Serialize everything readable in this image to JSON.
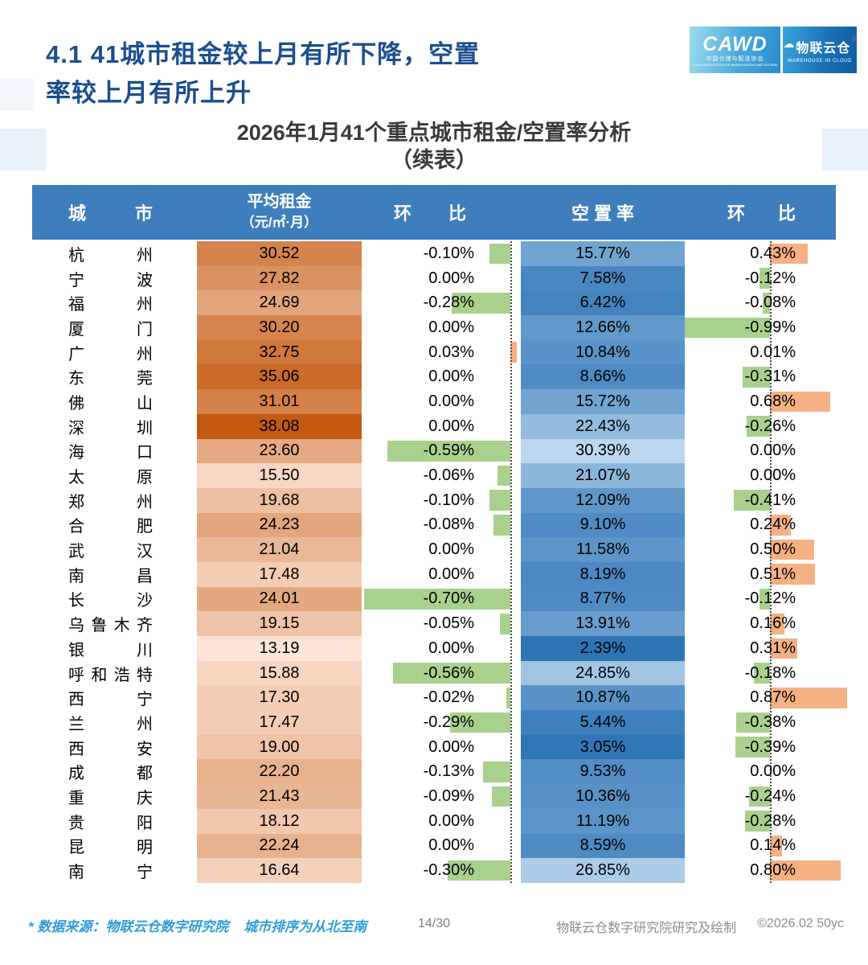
{
  "page": {
    "title_line1": "4.1 41城市租金较上月有所下降，空置",
    "title_line2": "率较上月有所上升",
    "subtitle_line1": "2026年1月41个重点城市租金/空置率分析",
    "subtitle_line2": "（续表）",
    "footer_note": "* 数据来源：物联云仓数字研究院    城市排序为从北至南",
    "page_number": "14/30",
    "footer_credit": "物联云仓数字研究院研究及绘制",
    "footer_copyright": "©2026.02 50yc"
  },
  "logos": {
    "cawd_text": "CAWD",
    "cawd_sub": "中国仓储与配送协会",
    "cawd_sub_en": "CHINA ASSOCIATION OF WAREHOUSING AND DISTRIBUTION",
    "wic_cloud": "☁",
    "wic_text": "物联云仓",
    "wic_reg": "®",
    "wic_sub": "WAREHOUSE IN CLOUD"
  },
  "colors": {
    "title": "#1B4E8F",
    "header_bg": "#3E7EBC",
    "rent_light": "#FCE4D6",
    "rent_dark": "#C45911",
    "vacancy_light": "#BDD7EE",
    "vacancy_dark": "#2E75B6",
    "bar_negative": "#A9D18E",
    "bar_positive": "#F4B183"
  },
  "chart_data": {
    "type": "table",
    "title": "2026年1月41个重点城市租金/空置率分析（续表）",
    "columns": [
      "城市",
      "平均租金（元/㎡·月）",
      "环比",
      "空置率",
      "环比"
    ],
    "header": {
      "city": "城市",
      "rent_line1": "平均租金",
      "rent_line2": "（元/㎡·月）",
      "mom": "环比",
      "vacancy": "空置率"
    },
    "rent_range": [
      13.19,
      38.08
    ],
    "vacancy_range": [
      2.39,
      30.39
    ],
    "rows": [
      {
        "city": "杭州",
        "rent": 30.52,
        "rent_mom": -0.1,
        "vacancy": 15.77,
        "vacancy_mom": 0.43
      },
      {
        "city": "宁波",
        "rent": 27.82,
        "rent_mom": 0.0,
        "vacancy": 7.58,
        "vacancy_mom": -0.12
      },
      {
        "city": "福州",
        "rent": 24.69,
        "rent_mom": -0.28,
        "vacancy": 6.42,
        "vacancy_mom": -0.08
      },
      {
        "city": "厦门",
        "rent": 30.2,
        "rent_mom": 0.0,
        "vacancy": 12.66,
        "vacancy_mom": -0.99
      },
      {
        "city": "广州",
        "rent": 32.75,
        "rent_mom": 0.03,
        "vacancy": 10.84,
        "vacancy_mom": 0.01
      },
      {
        "city": "东莞",
        "rent": 35.06,
        "rent_mom": 0.0,
        "vacancy": 8.66,
        "vacancy_mom": -0.31
      },
      {
        "city": "佛山",
        "rent": 31.01,
        "rent_mom": 0.0,
        "vacancy": 15.72,
        "vacancy_mom": 0.68
      },
      {
        "city": "深圳",
        "rent": 38.08,
        "rent_mom": 0.0,
        "vacancy": 22.43,
        "vacancy_mom": -0.26
      },
      {
        "city": "海口",
        "rent": 23.6,
        "rent_mom": -0.59,
        "vacancy": 30.39,
        "vacancy_mom": 0.0
      },
      {
        "city": "太原",
        "rent": 15.5,
        "rent_mom": -0.06,
        "vacancy": 21.07,
        "vacancy_mom": 0.0
      },
      {
        "city": "郑州",
        "rent": 19.68,
        "rent_mom": -0.1,
        "vacancy": 12.09,
        "vacancy_mom": -0.41
      },
      {
        "city": "合肥",
        "rent": 24.23,
        "rent_mom": -0.08,
        "vacancy": 9.1,
        "vacancy_mom": 0.24
      },
      {
        "city": "武汉",
        "rent": 21.04,
        "rent_mom": 0.0,
        "vacancy": 11.58,
        "vacancy_mom": 0.5
      },
      {
        "city": "南昌",
        "rent": 17.48,
        "rent_mom": 0.0,
        "vacancy": 8.19,
        "vacancy_mom": 0.51
      },
      {
        "city": "长沙",
        "rent": 24.01,
        "rent_mom": -0.7,
        "vacancy": 8.77,
        "vacancy_mom": -0.12
      },
      {
        "city": "乌鲁木齐",
        "rent": 19.15,
        "rent_mom": -0.05,
        "vacancy": 13.91,
        "vacancy_mom": 0.16
      },
      {
        "city": "银川",
        "rent": 13.19,
        "rent_mom": 0.0,
        "vacancy": 2.39,
        "vacancy_mom": 0.31
      },
      {
        "city": "呼和浩特",
        "rent": 15.88,
        "rent_mom": -0.56,
        "vacancy": 24.85,
        "vacancy_mom": -0.18
      },
      {
        "city": "西宁",
        "rent": 17.3,
        "rent_mom": -0.02,
        "vacancy": 10.87,
        "vacancy_mom": 0.87
      },
      {
        "city": "兰州",
        "rent": 17.47,
        "rent_mom": -0.29,
        "vacancy": 5.44,
        "vacancy_mom": -0.38
      },
      {
        "city": "西安",
        "rent": 19.0,
        "rent_mom": 0.0,
        "vacancy": 3.05,
        "vacancy_mom": -0.39
      },
      {
        "city": "成都",
        "rent": 22.2,
        "rent_mom": -0.13,
        "vacancy": 9.53,
        "vacancy_mom": 0.0
      },
      {
        "city": "重庆",
        "rent": 21.43,
        "rent_mom": -0.09,
        "vacancy": 10.36,
        "vacancy_mom": -0.24
      },
      {
        "city": "贵阳",
        "rent": 18.12,
        "rent_mom": 0.0,
        "vacancy": 11.19,
        "vacancy_mom": -0.28
      },
      {
        "city": "昆明",
        "rent": 22.24,
        "rent_mom": 0.0,
        "vacancy": 8.59,
        "vacancy_mom": 0.14
      },
      {
        "city": "南宁",
        "rent": 16.64,
        "rent_mom": -0.3,
        "vacancy": 26.85,
        "vacancy_mom": 0.8
      }
    ]
  }
}
